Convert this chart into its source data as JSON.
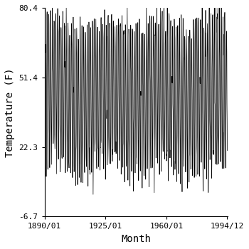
{
  "title": "",
  "xlabel": "Month",
  "ylabel": "Temperature (F)",
  "start_year": 1890,
  "start_month": 1,
  "end_year": 1994,
  "end_month": 12,
  "ylim": [
    -6.7,
    80.4
  ],
  "yticks": [
    -6.7,
    22.3,
    51.4,
    80.4
  ],
  "xtick_labels": [
    "1890/01",
    "1925/01",
    "1960/01",
    "1994/12"
  ],
  "line_color": "black",
  "line_width": 0.5,
  "background_color": "white",
  "mean_temp": 43.85,
  "amplitude": 30.0,
  "noise_std": 4.0,
  "figsize": [
    3.5,
    3.5
  ],
  "dpi": 100
}
